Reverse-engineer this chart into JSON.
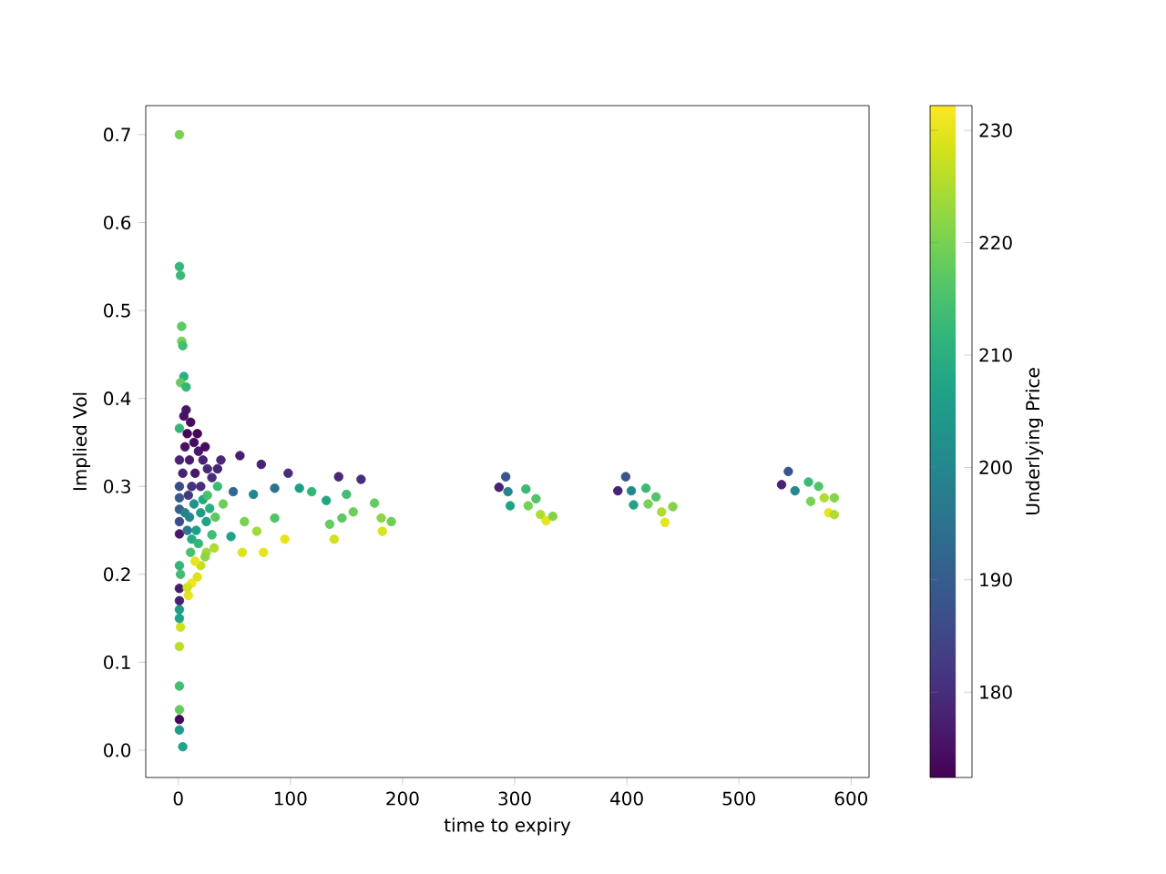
{
  "chart_data": {
    "type": "scatter",
    "xlabel": "time to expiry",
    "ylabel": "Implied Vol",
    "clabel": "Underlying Price",
    "marker": "circle",
    "xlim": [
      -29,
      616
    ],
    "ylim": [
      -0.031,
      0.733
    ],
    "xticks": [
      0,
      100,
      200,
      300,
      400,
      500,
      600
    ],
    "yticks": [
      {
        "value": 0,
        "label": "0.0"
      },
      0.1,
      0.2,
      0.3,
      0.4,
      0.5,
      0.6,
      0.7
    ],
    "clim": [
      172.4,
      232.2
    ],
    "cticks": [
      180,
      190,
      200,
      210,
      220,
      230
    ],
    "x": [
      1,
      1,
      2,
      3,
      3,
      4,
      5,
      2,
      7,
      4,
      1,
      1,
      1,
      1,
      1,
      2,
      1,
      1,
      1,
      1,
      2,
      1,
      1,
      1,
      1,
      1,
      1,
      1,
      1,
      9,
      12,
      17,
      20,
      25,
      15,
      8,
      7,
      11,
      8,
      14,
      6,
      18,
      10,
      22,
      4,
      15,
      26,
      30,
      12,
      20,
      35,
      9,
      17,
      24,
      5,
      38,
      14,
      20,
      25,
      10,
      16,
      22,
      28,
      12,
      30,
      8,
      18,
      26,
      33,
      35,
      6,
      11,
      40,
      24,
      32,
      55,
      74,
      98,
      143,
      163,
      49,
      67,
      86,
      108,
      119,
      132,
      150,
      156,
      175,
      181,
      190,
      135,
      146,
      57,
      76,
      95,
      139,
      182,
      70,
      86,
      59,
      47,
      292,
      286,
      294,
      296,
      310,
      319,
      312,
      323,
      328,
      334,
      399,
      392,
      404,
      406,
      417,
      426,
      419,
      431,
      434,
      441,
      544,
      538,
      550,
      562,
      571,
      564,
      576,
      585,
      580,
      585
    ],
    "values": [
      0.7,
      0.55,
      0.54,
      0.482,
      0.465,
      0.46,
      0.425,
      0.418,
      0.413,
      0.004,
      0.023,
      0.035,
      0.046,
      0.073,
      0.118,
      0.14,
      0.15,
      0.16,
      0.17,
      0.184,
      0.2,
      0.21,
      0.246,
      0.26,
      0.274,
      0.287,
      0.3,
      0.33,
      0.366,
      0.176,
      0.19,
      0.197,
      0.21,
      0.225,
      0.215,
      0.185,
      0.387,
      0.373,
      0.36,
      0.35,
      0.345,
      0.34,
      0.33,
      0.33,
      0.315,
      0.315,
      0.32,
      0.31,
      0.3,
      0.3,
      0.32,
      0.29,
      0.36,
      0.345,
      0.38,
      0.33,
      0.28,
      0.27,
      0.26,
      0.265,
      0.25,
      0.285,
      0.275,
      0.24,
      0.245,
      0.25,
      0.235,
      0.29,
      0.265,
      0.3,
      0.27,
      0.225,
      0.28,
      0.22,
      0.23,
      0.335,
      0.325,
      0.315,
      0.311,
      0.308,
      0.294,
      0.291,
      0.298,
      0.298,
      0.294,
      0.284,
      0.291,
      0.271,
      0.281,
      0.264,
      0.26,
      0.257,
      0.264,
      0.225,
      0.225,
      0.24,
      0.24,
      0.249,
      0.249,
      0.264,
      0.26,
      0.243,
      0.311,
      0.299,
      0.294,
      0.278,
      0.297,
      0.286,
      0.278,
      0.268,
      0.261,
      0.266,
      0.311,
      0.295,
      0.295,
      0.279,
      0.298,
      0.288,
      0.28,
      0.271,
      0.259,
      0.277,
      0.317,
      0.302,
      0.295,
      0.305,
      0.3,
      0.283,
      0.287,
      0.287,
      0.27,
      0.268
    ],
    "cvalues": [
      220,
      212,
      213,
      217,
      220,
      214,
      210,
      218,
      212,
      207,
      205,
      173,
      218,
      214,
      226,
      228,
      207,
      205,
      178,
      177,
      214,
      212,
      176,
      186,
      190,
      189,
      186,
      178,
      212,
      230,
      231,
      229,
      227,
      224,
      230,
      228,
      176,
      174,
      173,
      174,
      175,
      176,
      177,
      178,
      178,
      176,
      179,
      180,
      181,
      180,
      178,
      182,
      173,
      174,
      175,
      179,
      203,
      205,
      207,
      200,
      206,
      208,
      210,
      209,
      214,
      196,
      212,
      215,
      217,
      213,
      199,
      215,
      219,
      222,
      225,
      177,
      178,
      180,
      179,
      180,
      192,
      200,
      195,
      206,
      212,
      208,
      214,
      219,
      218,
      222,
      219,
      218,
      217,
      229,
      230,
      230,
      228,
      229,
      224,
      216,
      220,
      207,
      188,
      178,
      200,
      207,
      213,
      216,
      220,
      225,
      230,
      221,
      188,
      178,
      200,
      207,
      213,
      216,
      220,
      225,
      230,
      221,
      188,
      178,
      200,
      213,
      216,
      220,
      225,
      221,
      230,
      225
    ]
  }
}
